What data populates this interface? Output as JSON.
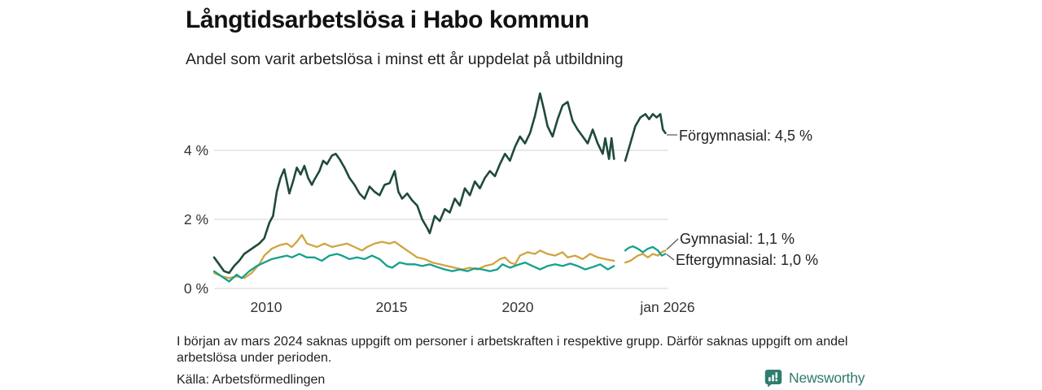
{
  "header": {
    "title": "Långtidsarbetslösa i Habo kommun",
    "subtitle": "Andel som varit arbetslösa i minst ett år uppdelat på utbildning"
  },
  "footnote": {
    "text": "I början av mars 2024 saknas uppgift om personer i arbetskraften i respektive grupp. Därför saknas uppgift om andel arbetslösa under perioden.",
    "source": "Källa: Arbetsförmedlingen"
  },
  "branding": {
    "name": "Newsworthy",
    "color": "#2e7d6e"
  },
  "colors": {
    "grid": "#d9d9d9",
    "tick_text": "#333333",
    "leader": "#555555",
    "title_text": "#111111"
  },
  "chart_data": {
    "type": "line",
    "title": "Långtidsarbetslösa i Habo kommun",
    "subtitle": "Andel som varit arbetslösa i minst ett år uppdelat på utbildning",
    "unit": "%",
    "grid": "horizontal-only",
    "x_range": [
      2008.0,
      2026.1
    ],
    "ylim": [
      0,
      5.8
    ],
    "gap_note": "data missing around mars 2024",
    "y_axis": {
      "ticks": [
        {
          "v": 0,
          "label": "0 %"
        },
        {
          "v": 2,
          "label": "2 %"
        },
        {
          "v": 4,
          "label": "4 %"
        }
      ]
    },
    "x_axis": {
      "ticks": [
        {
          "t": 2010,
          "label": "2010"
        },
        {
          "t": 2015,
          "label": "2015"
        },
        {
          "t": 2020,
          "label": "2020"
        },
        {
          "t": 2026,
          "label": "jan 2026"
        }
      ]
    },
    "series": [
      {
        "name": "Förgymnasial",
        "color": "#1f4a3d",
        "width": 2.6,
        "end_value": 4.5,
        "end_label": "Förgymnasial: 4,5 %",
        "points": [
          [
            2008.0,
            0.9
          ],
          [
            2008.2,
            0.7
          ],
          [
            2008.4,
            0.5
          ],
          [
            2008.6,
            0.45
          ],
          [
            2008.8,
            0.65
          ],
          [
            2009.0,
            0.8
          ],
          [
            2009.2,
            1.0
          ],
          [
            2009.4,
            1.1
          ],
          [
            2009.6,
            1.2
          ],
          [
            2009.8,
            1.3
          ],
          [
            2010.0,
            1.45
          ],
          [
            2010.2,
            1.9
          ],
          [
            2010.35,
            2.1
          ],
          [
            2010.5,
            2.8
          ],
          [
            2010.65,
            3.2
          ],
          [
            2010.8,
            3.45
          ],
          [
            2011.0,
            2.75
          ],
          [
            2011.15,
            3.1
          ],
          [
            2011.3,
            3.5
          ],
          [
            2011.45,
            3.3
          ],
          [
            2011.6,
            3.55
          ],
          [
            2011.75,
            3.2
          ],
          [
            2011.9,
            3.0
          ],
          [
            2012.0,
            3.15
          ],
          [
            2012.2,
            3.4
          ],
          [
            2012.35,
            3.7
          ],
          [
            2012.5,
            3.6
          ],
          [
            2012.7,
            3.85
          ],
          [
            2012.85,
            3.9
          ],
          [
            2013.0,
            3.75
          ],
          [
            2013.2,
            3.5
          ],
          [
            2013.4,
            3.2
          ],
          [
            2013.6,
            3.0
          ],
          [
            2013.8,
            2.75
          ],
          [
            2014.0,
            2.6
          ],
          [
            2014.2,
            2.95
          ],
          [
            2014.4,
            2.8
          ],
          [
            2014.6,
            2.7
          ],
          [
            2014.8,
            3.0
          ],
          [
            2015.0,
            3.05
          ],
          [
            2015.2,
            3.4
          ],
          [
            2015.35,
            2.8
          ],
          [
            2015.5,
            2.6
          ],
          [
            2015.7,
            2.75
          ],
          [
            2015.9,
            2.55
          ],
          [
            2016.1,
            2.4
          ],
          [
            2016.3,
            2.0
          ],
          [
            2016.5,
            1.75
          ],
          [
            2016.6,
            1.6
          ],
          [
            2016.8,
            2.1
          ],
          [
            2017.0,
            1.95
          ],
          [
            2017.2,
            2.3
          ],
          [
            2017.4,
            2.2
          ],
          [
            2017.6,
            2.6
          ],
          [
            2017.8,
            2.4
          ],
          [
            2018.0,
            2.9
          ],
          [
            2018.2,
            2.7
          ],
          [
            2018.4,
            3.1
          ],
          [
            2018.6,
            2.9
          ],
          [
            2018.8,
            3.2
          ],
          [
            2019.0,
            3.4
          ],
          [
            2019.2,
            3.25
          ],
          [
            2019.4,
            3.6
          ],
          [
            2019.6,
            3.9
          ],
          [
            2019.8,
            3.7
          ],
          [
            2020.0,
            4.1
          ],
          [
            2020.2,
            4.4
          ],
          [
            2020.4,
            4.2
          ],
          [
            2020.6,
            4.5
          ],
          [
            2020.8,
            5.0
          ],
          [
            2021.0,
            5.65
          ],
          [
            2021.15,
            5.2
          ],
          [
            2021.3,
            4.7
          ],
          [
            2021.5,
            4.4
          ],
          [
            2021.7,
            4.9
          ],
          [
            2021.9,
            5.3
          ],
          [
            2022.1,
            5.4
          ],
          [
            2022.3,
            4.85
          ],
          [
            2022.5,
            4.6
          ],
          [
            2022.7,
            4.4
          ],
          [
            2022.9,
            4.2
          ],
          [
            2023.1,
            4.6
          ],
          [
            2023.3,
            4.2
          ],
          [
            2023.5,
            3.9
          ],
          [
            2023.6,
            4.35
          ],
          [
            2023.75,
            3.75
          ],
          [
            2023.85,
            4.35
          ],
          [
            2023.95,
            3.75
          ],
          [
            2024.1,
            null
          ],
          [
            2024.4,
            3.7
          ],
          [
            2024.6,
            4.2
          ],
          [
            2024.8,
            4.7
          ],
          [
            2025.0,
            4.95
          ],
          [
            2025.2,
            5.05
          ],
          [
            2025.35,
            4.9
          ],
          [
            2025.5,
            5.05
          ],
          [
            2025.65,
            4.95
          ],
          [
            2025.8,
            5.05
          ],
          [
            2025.9,
            4.6
          ],
          [
            2026.0,
            4.5
          ]
        ]
      },
      {
        "name": "Gymnasial",
        "color": "#d2a440",
        "width": 2.3,
        "end_value": 1.1,
        "end_label": "Gymnasial: 1,1 %",
        "points": [
          [
            2008.0,
            0.45
          ],
          [
            2008.3,
            0.35
          ],
          [
            2008.6,
            0.3
          ],
          [
            2008.9,
            0.35
          ],
          [
            2009.2,
            0.3
          ],
          [
            2009.5,
            0.45
          ],
          [
            2009.8,
            0.7
          ],
          [
            2010.0,
            0.95
          ],
          [
            2010.3,
            1.15
          ],
          [
            2010.6,
            1.25
          ],
          [
            2010.9,
            1.3
          ],
          [
            2011.1,
            1.2
          ],
          [
            2011.3,
            1.35
          ],
          [
            2011.5,
            1.55
          ],
          [
            2011.7,
            1.3
          ],
          [
            2011.9,
            1.25
          ],
          [
            2012.1,
            1.2
          ],
          [
            2012.4,
            1.3
          ],
          [
            2012.7,
            1.2
          ],
          [
            2013.0,
            1.25
          ],
          [
            2013.3,
            1.3
          ],
          [
            2013.6,
            1.2
          ],
          [
            2013.9,
            1.1
          ],
          [
            2014.1,
            1.2
          ],
          [
            2014.4,
            1.3
          ],
          [
            2014.7,
            1.35
          ],
          [
            2015.0,
            1.3
          ],
          [
            2015.2,
            1.35
          ],
          [
            2015.5,
            1.2
          ],
          [
            2015.8,
            1.05
          ],
          [
            2016.1,
            0.9
          ],
          [
            2016.4,
            0.85
          ],
          [
            2016.7,
            0.75
          ],
          [
            2017.0,
            0.7
          ],
          [
            2017.3,
            0.65
          ],
          [
            2017.6,
            0.6
          ],
          [
            2017.9,
            0.55
          ],
          [
            2018.2,
            0.6
          ],
          [
            2018.5,
            0.55
          ],
          [
            2018.8,
            0.65
          ],
          [
            2019.1,
            0.7
          ],
          [
            2019.4,
            0.85
          ],
          [
            2019.6,
            0.9
          ],
          [
            2019.8,
            0.75
          ],
          [
            2020.0,
            0.7
          ],
          [
            2020.2,
            0.95
          ],
          [
            2020.5,
            1.05
          ],
          [
            2020.8,
            1.0
          ],
          [
            2021.0,
            1.1
          ],
          [
            2021.3,
            1.0
          ],
          [
            2021.6,
            0.95
          ],
          [
            2021.9,
            1.05
          ],
          [
            2022.1,
            0.9
          ],
          [
            2022.4,
            0.95
          ],
          [
            2022.7,
            0.85
          ],
          [
            2023.0,
            1.0
          ],
          [
            2023.3,
            0.9
          ],
          [
            2023.6,
            0.85
          ],
          [
            2023.95,
            0.8
          ],
          [
            2024.1,
            null
          ],
          [
            2024.4,
            0.75
          ],
          [
            2024.6,
            0.8
          ],
          [
            2024.9,
            0.95
          ],
          [
            2025.1,
            1.0
          ],
          [
            2025.3,
            0.9
          ],
          [
            2025.5,
            1.0
          ],
          [
            2025.7,
            0.95
          ],
          [
            2025.85,
            1.05
          ],
          [
            2026.0,
            1.1
          ]
        ]
      },
      {
        "name": "Eftergymnasial",
        "color": "#16a08c",
        "width": 2.3,
        "end_value": 1.0,
        "end_label": "Eftergymnasial: 1,0 %",
        "points": [
          [
            2008.0,
            0.5
          ],
          [
            2008.3,
            0.35
          ],
          [
            2008.6,
            0.2
          ],
          [
            2008.9,
            0.4
          ],
          [
            2009.1,
            0.3
          ],
          [
            2009.4,
            0.5
          ],
          [
            2009.7,
            0.65
          ],
          [
            2010.0,
            0.75
          ],
          [
            2010.3,
            0.85
          ],
          [
            2010.6,
            0.9
          ],
          [
            2010.9,
            0.95
          ],
          [
            2011.1,
            0.9
          ],
          [
            2011.4,
            1.0
          ],
          [
            2011.7,
            0.9
          ],
          [
            2012.0,
            0.9
          ],
          [
            2012.3,
            0.8
          ],
          [
            2012.6,
            0.95
          ],
          [
            2012.9,
            1.0
          ],
          [
            2013.1,
            0.95
          ],
          [
            2013.4,
            0.85
          ],
          [
            2013.7,
            0.9
          ],
          [
            2014.0,
            0.85
          ],
          [
            2014.3,
            0.95
          ],
          [
            2014.6,
            0.85
          ],
          [
            2014.9,
            0.65
          ],
          [
            2015.1,
            0.6
          ],
          [
            2015.4,
            0.75
          ],
          [
            2015.7,
            0.7
          ],
          [
            2016.0,
            0.7
          ],
          [
            2016.3,
            0.65
          ],
          [
            2016.6,
            0.7
          ],
          [
            2016.9,
            0.62
          ],
          [
            2017.2,
            0.55
          ],
          [
            2017.5,
            0.5
          ],
          [
            2017.8,
            0.55
          ],
          [
            2018.1,
            0.5
          ],
          [
            2018.4,
            0.58
          ],
          [
            2018.7,
            0.55
          ],
          [
            2019.0,
            0.5
          ],
          [
            2019.3,
            0.55
          ],
          [
            2019.5,
            0.7
          ],
          [
            2019.8,
            0.6
          ],
          [
            2020.1,
            0.68
          ],
          [
            2020.4,
            0.75
          ],
          [
            2020.7,
            0.65
          ],
          [
            2021.0,
            0.55
          ],
          [
            2021.3,
            0.65
          ],
          [
            2021.6,
            0.7
          ],
          [
            2021.9,
            0.65
          ],
          [
            2022.2,
            0.72
          ],
          [
            2022.5,
            0.65
          ],
          [
            2022.8,
            0.55
          ],
          [
            2023.1,
            0.62
          ],
          [
            2023.4,
            0.7
          ],
          [
            2023.7,
            0.55
          ],
          [
            2023.95,
            0.65
          ],
          [
            2024.1,
            null
          ],
          [
            2024.4,
            1.1
          ],
          [
            2024.55,
            1.18
          ],
          [
            2024.7,
            1.22
          ],
          [
            2024.9,
            1.15
          ],
          [
            2025.1,
            1.05
          ],
          [
            2025.3,
            1.15
          ],
          [
            2025.5,
            1.2
          ],
          [
            2025.7,
            1.1
          ],
          [
            2025.85,
            0.95
          ],
          [
            2026.0,
            1.0
          ]
        ]
      }
    ]
  }
}
